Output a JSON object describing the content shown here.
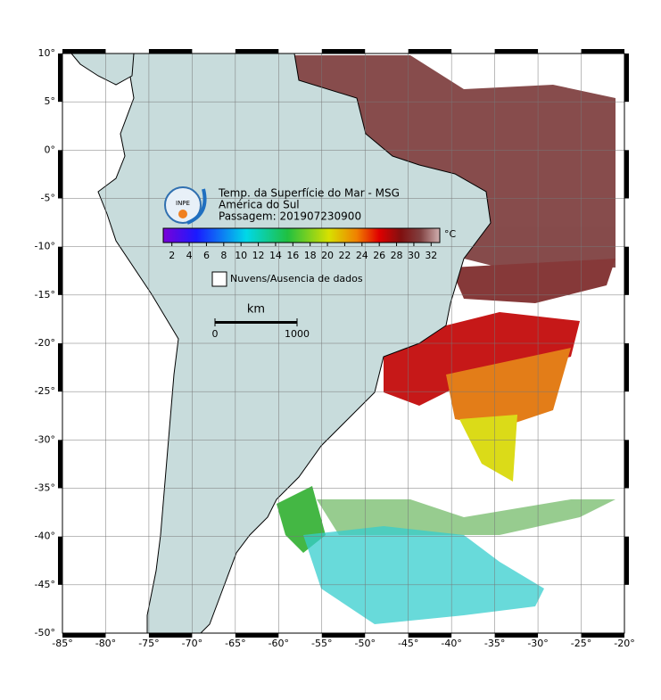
{
  "map": {
    "title": "Temp. da Superfície do Mar - MSG",
    "region": "América do Sul",
    "pass": "Passagem: 201907230900",
    "logo_text": "INPE",
    "lon_range": [
      -85,
      -20
    ],
    "lat_range": [
      -50,
      10
    ],
    "lon_ticks": [
      {
        "value": -85,
        "label": "-85°"
      },
      {
        "value": -80,
        "label": "-80°"
      },
      {
        "value": -75,
        "label": "-75°"
      },
      {
        "value": -70,
        "label": "-70°"
      },
      {
        "value": -65,
        "label": "-65°"
      },
      {
        "value": -60,
        "label": "-60°"
      },
      {
        "value": -55,
        "label": "-55°"
      },
      {
        "value": -50,
        "label": "-50°"
      },
      {
        "value": -45,
        "label": "-45°"
      },
      {
        "value": -40,
        "label": "-40°"
      },
      {
        "value": -35,
        "label": "-35°"
      },
      {
        "value": -30,
        "label": "-30°"
      },
      {
        "value": -25,
        "label": "-25°"
      },
      {
        "value": -20,
        "label": "-20°"
      }
    ],
    "lat_ticks": [
      {
        "value": 10,
        "label": "10°"
      },
      {
        "value": 5,
        "label": "5°"
      },
      {
        "value": 0,
        "label": "0°"
      },
      {
        "value": -5,
        "label": "-5°"
      },
      {
        "value": -10,
        "label": "-10°"
      },
      {
        "value": -15,
        "label": "-15°"
      },
      {
        "value": -20,
        "label": "-20°"
      },
      {
        "value": -25,
        "label": "-25°"
      },
      {
        "value": -30,
        "label": "-30°"
      },
      {
        "value": -35,
        "label": "-35°"
      },
      {
        "value": -40,
        "label": "-40°"
      },
      {
        "value": -45,
        "label": "-45°"
      },
      {
        "value": -50,
        "label": "-50°"
      }
    ],
    "colorbar": {
      "unit": "°C",
      "range": [
        1,
        33
      ],
      "ticks": [
        2,
        4,
        6,
        8,
        10,
        12,
        14,
        16,
        18,
        20,
        22,
        24,
        26,
        28,
        30,
        32
      ]
    },
    "legend": "Nuvens/Ausencia de dados",
    "scale": {
      "unit": "km",
      "start": "0",
      "end": "1000"
    }
  }
}
